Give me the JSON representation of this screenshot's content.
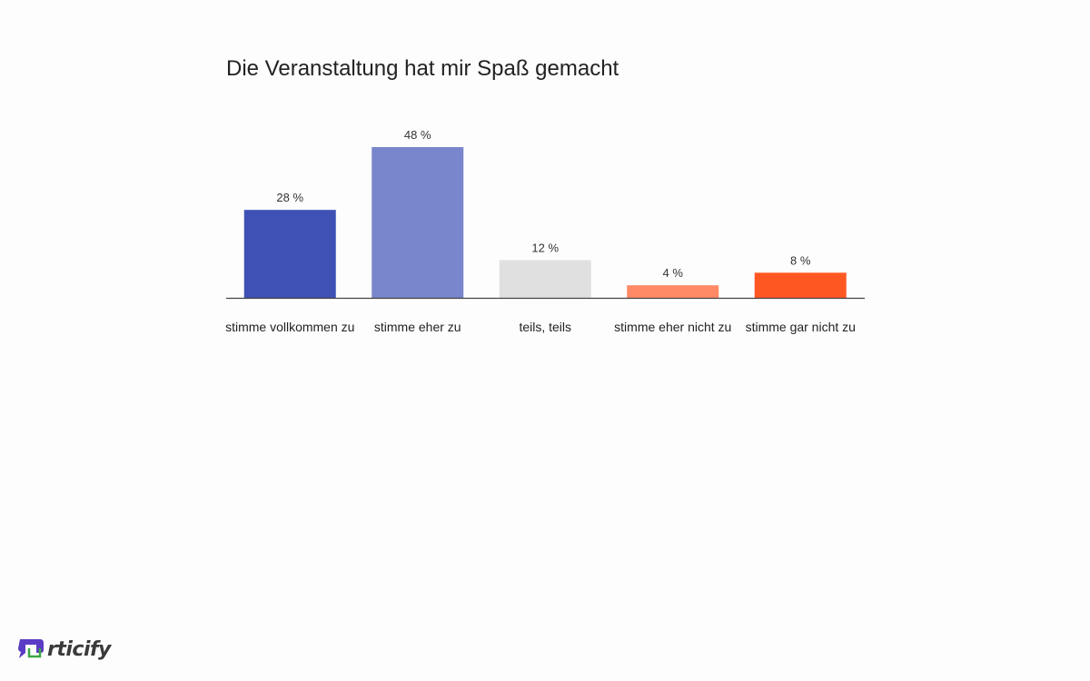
{
  "chart_data": {
    "type": "bar",
    "title": "Die Veranstaltung hat mir Spaß gemacht",
    "categories": [
      "stimme vollkommen zu",
      "stimme eher zu",
      "teils, teils",
      "stimme eher nicht zu",
      "stimme gar nicht zu"
    ],
    "values": [
      28,
      48,
      12,
      4,
      8
    ],
    "value_labels": [
      "28 %",
      "48 %",
      "12 %",
      "4 %",
      "8 %"
    ],
    "colors": [
      "#3f51b5",
      "#7986cb",
      "#e0e0e0",
      "#ff8a65",
      "#ff5722"
    ],
    "xlabel": "",
    "ylabel": "",
    "ylim": [
      0,
      48
    ],
    "grid": false
  },
  "logo": {
    "text": "rticify",
    "colors": [
      "#5b3cc4",
      "#3aa845"
    ]
  }
}
